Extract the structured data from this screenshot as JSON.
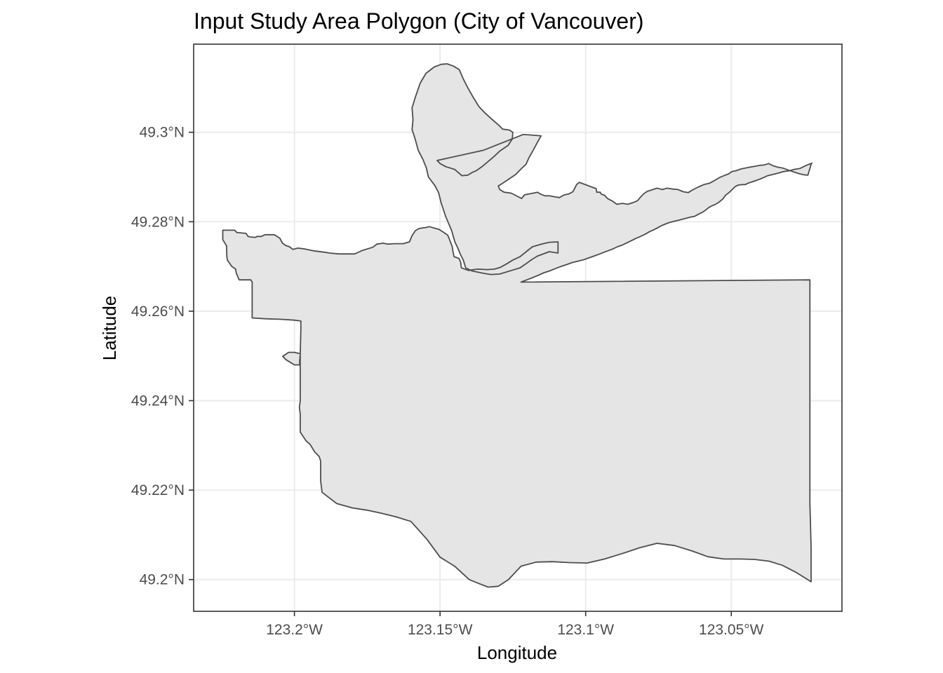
{
  "chart_data": {
    "type": "map",
    "title": "Input Study Area Polygon (City of Vancouver)",
    "xlabel": "Longitude",
    "ylabel": "Latitude",
    "x_ticks": [
      {
        "value": -123.2,
        "label": "123.2°W"
      },
      {
        "value": -123.15,
        "label": "123.15°W"
      },
      {
        "value": -123.1,
        "label": "123.1°W"
      },
      {
        "value": -123.05,
        "label": "123.05°W"
      }
    ],
    "y_ticks": [
      {
        "value": 49.2,
        "label": "49.2°N"
      },
      {
        "value": 49.22,
        "label": "49.22°N"
      },
      {
        "value": 49.24,
        "label": "49.24°N"
      },
      {
        "value": 49.26,
        "label": "49.26°N"
      },
      {
        "value": 49.28,
        "label": "49.28°N"
      },
      {
        "value": 49.3,
        "label": "49.3°N"
      }
    ],
    "xlim": [
      -123.2346,
      -123.012
    ],
    "ylim": [
      49.1929,
      49.3197
    ],
    "grid": true,
    "fill_color": "#e5e5e5",
    "stroke_color": "#4d4d4d",
    "polygon": [
      [
        -123.2246,
        49.2781
      ],
      [
        -123.2205,
        49.2781
      ],
      [
        -123.2198,
        49.2776
      ],
      [
        -123.2166,
        49.2774
      ],
      [
        -123.2159,
        49.2767
      ],
      [
        -123.2152,
        49.2766
      ],
      [
        -123.2134,
        49.2765
      ],
      [
        -123.2129,
        49.2767
      ],
      [
        -123.2114,
        49.2767
      ],
      [
        -123.2101,
        49.2771
      ],
      [
        -123.2069,
        49.2771
      ],
      [
        -123.205,
        49.2763
      ],
      [
        -123.2041,
        49.2752
      ],
      [
        -123.203,
        49.2747
      ],
      [
        -123.2017,
        49.2744
      ],
      [
        -123.2005,
        49.2738
      ],
      [
        -123.1988,
        49.2741
      ],
      [
        -123.1964,
        49.2739
      ],
      [
        -123.1934,
        49.2735
      ],
      [
        -123.1898,
        49.2732
      ],
      [
        -123.1878,
        49.273
      ],
      [
        -123.1848,
        49.2728
      ],
      [
        -123.1793,
        49.2728
      ],
      [
        -123.1766,
        49.2736
      ],
      [
        -123.1731,
        49.2743
      ],
      [
        -123.1717,
        49.275
      ],
      [
        -123.1695,
        49.2752
      ],
      [
        -123.168,
        49.275
      ],
      [
        -123.1658,
        49.2751
      ],
      [
        -123.1627,
        49.2751
      ],
      [
        -123.1605,
        49.2755
      ],
      [
        -123.1596,
        49.2769
      ],
      [
        -123.1585,
        49.278
      ],
      [
        -123.1572,
        49.2785
      ],
      [
        -123.155,
        49.2787
      ],
      [
        -123.1536,
        49.2789
      ],
      [
        -123.1521,
        49.2786
      ],
      [
        -123.1504,
        49.2783
      ],
      [
        -123.1489,
        49.2777
      ],
      [
        -123.1474,
        49.277
      ],
      [
        -123.1469,
        49.2763
      ],
      [
        -123.1458,
        49.2744
      ],
      [
        -123.1456,
        49.2735
      ],
      [
        -123.1452,
        49.2722
      ],
      [
        -123.1435,
        49.2718
      ],
      [
        -123.1429,
        49.2709
      ],
      [
        -123.1427,
        49.2697
      ],
      [
        -123.1402,
        49.2691
      ],
      [
        -123.1386,
        49.2693
      ],
      [
        -123.1368,
        49.2694
      ],
      [
        -123.1339,
        49.2693
      ],
      [
        -123.1313,
        49.2694
      ],
      [
        -123.1293,
        49.2698
      ],
      [
        -123.1271,
        49.2706
      ],
      [
        -123.1251,
        49.2714
      ],
      [
        -123.1225,
        49.2722
      ],
      [
        -123.1204,
        49.2733
      ],
      [
        -123.1183,
        49.2744
      ],
      [
        -123.1152,
        49.275
      ],
      [
        -123.1125,
        49.2754
      ],
      [
        -123.1095,
        49.2755
      ],
      [
        -123.1095,
        49.273
      ],
      [
        -123.1125,
        49.2733
      ],
      [
        -123.1166,
        49.2723
      ],
      [
        -123.1186,
        49.2715
      ],
      [
        -123.1205,
        49.2706
      ],
      [
        -123.1225,
        49.2697
      ],
      [
        -123.1255,
        49.2691
      ],
      [
        -123.1295,
        49.2683
      ],
      [
        -123.1325,
        49.2682
      ],
      [
        -123.1352,
        49.2685
      ],
      [
        -123.139,
        49.269
      ],
      [
        -123.1412,
        49.2697
      ],
      [
        -123.142,
        49.2714
      ],
      [
        -123.143,
        49.2727
      ],
      [
        -123.1439,
        49.2741
      ],
      [
        -123.1449,
        49.2755
      ],
      [
        -123.146,
        49.278
      ],
      [
        -123.1481,
        49.2812
      ],
      [
        -123.1496,
        49.2842
      ],
      [
        -123.1505,
        49.2865
      ],
      [
        -123.1518,
        49.2881
      ],
      [
        -123.154,
        49.29
      ],
      [
        -123.1547,
        49.292
      ],
      [
        -123.1558,
        49.2938
      ],
      [
        -123.1575,
        49.296
      ],
      [
        -123.1586,
        49.2986
      ],
      [
        -123.1596,
        49.3006
      ],
      [
        -123.1593,
        49.3028
      ],
      [
        -123.1596,
        49.3055
      ],
      [
        -123.1584,
        49.308
      ],
      [
        -123.1568,
        49.311
      ],
      [
        -123.1548,
        49.3132
      ],
      [
        -123.152,
        49.3146
      ],
      [
        -123.1495,
        49.3152
      ],
      [
        -123.1475,
        49.3153
      ],
      [
        -123.1454,
        49.3148
      ],
      [
        -123.1434,
        49.314
      ],
      [
        -123.142,
        49.3119
      ],
      [
        -123.1405,
        49.31
      ],
      [
        -123.1388,
        49.308
      ],
      [
        -123.1366,
        49.3057
      ],
      [
        -123.1347,
        49.3044
      ],
      [
        -123.1325,
        49.3031
      ],
      [
        -123.1297,
        49.3015
      ],
      [
        -123.1285,
        49.3007
      ],
      [
        -123.1262,
        49.3005
      ],
      [
        -123.125,
        49.3
      ],
      [
        -123.1252,
        49.2985
      ],
      [
        -123.1266,
        49.2971
      ],
      [
        -123.1295,
        49.2958
      ],
      [
        -123.1316,
        49.2945
      ],
      [
        -123.1336,
        49.2934
      ],
      [
        -123.1356,
        49.2923
      ],
      [
        -123.1376,
        49.2914
      ],
      [
        -123.139,
        49.291
      ],
      [
        -123.1405,
        49.2904
      ],
      [
        -123.1425,
        49.2903
      ],
      [
        -123.145,
        49.2917
      ],
      [
        -123.1465,
        49.292
      ],
      [
        -123.148,
        49.2923
      ],
      [
        -123.15,
        49.293
      ],
      [
        -123.151,
        49.2937
      ],
      [
        -123.135,
        49.296
      ],
      [
        -123.1215,
        49.2995
      ],
      [
        -123.119,
        49.2994
      ],
      [
        -123.1153,
        49.2992
      ],
      [
        -123.1167,
        49.2976
      ],
      [
        -123.118,
        49.296
      ],
      [
        -123.1195,
        49.2943
      ],
      [
        -123.1205,
        49.2928
      ],
      [
        -123.1222,
        49.2918
      ],
      [
        -123.124,
        49.2906
      ],
      [
        -123.1262,
        49.2896
      ],
      [
        -123.1285,
        49.2886
      ],
      [
        -123.13,
        49.288
      ],
      [
        -123.1295,
        49.2872
      ],
      [
        -123.128,
        49.2866
      ],
      [
        -123.1256,
        49.2864
      ],
      [
        -123.122,
        49.2852
      ],
      [
        -123.121,
        49.286
      ],
      [
        -123.1196,
        49.2862
      ],
      [
        -123.118,
        49.2864
      ],
      [
        -123.1165,
        49.2866
      ],
      [
        -123.1156,
        49.2862
      ],
      [
        -123.114,
        49.2858
      ],
      [
        -123.1124,
        49.2858
      ],
      [
        -123.1108,
        49.2856
      ],
      [
        -123.109,
        49.2854
      ],
      [
        -123.1074,
        49.286
      ],
      [
        -123.1058,
        49.2862
      ],
      [
        -123.1044,
        49.2867
      ],
      [
        -123.1031,
        49.2883
      ],
      [
        -123.1022,
        49.2888
      ],
      [
        -123.0964,
        49.2874
      ],
      [
        -123.0962,
        49.2866
      ],
      [
        -123.095,
        49.2866
      ],
      [
        -123.0947,
        49.2862
      ],
      [
        -123.0935,
        49.2859
      ],
      [
        -123.0925,
        49.2852
      ],
      [
        -123.0908,
        49.2846
      ],
      [
        -123.0893,
        49.2839
      ],
      [
        -123.0873,
        49.2841
      ],
      [
        -123.0855,
        49.2839
      ],
      [
        -123.0837,
        49.2843
      ],
      [
        -123.0822,
        49.2847
      ],
      [
        -123.0812,
        49.2855
      ],
      [
        -123.08,
        49.2863
      ],
      [
        -123.0788,
        49.2868
      ],
      [
        -123.0774,
        49.2871
      ],
      [
        -123.0755,
        49.2875
      ],
      [
        -123.0737,
        49.2872
      ],
      [
        -123.072,
        49.2875
      ],
      [
        -123.0701,
        49.2873
      ],
      [
        -123.0683,
        49.2872
      ],
      [
        -123.0665,
        49.2867
      ],
      [
        -123.0648,
        49.2865
      ],
      [
        -123.0631,
        49.2872
      ],
      [
        -123.0612,
        49.2878
      ],
      [
        -123.0594,
        49.2883
      ],
      [
        -123.0575,
        49.2886
      ],
      [
        -123.0558,
        49.2892
      ],
      [
        -123.054,
        49.2899
      ],
      [
        -123.0525,
        49.2903
      ],
      [
        -123.0509,
        49.2907
      ],
      [
        -123.0498,
        49.2912
      ],
      [
        -123.0485,
        49.2914
      ],
      [
        -123.0467,
        49.2918
      ],
      [
        -123.0452,
        49.292
      ],
      [
        -123.0437,
        49.2922
      ],
      [
        -123.042,
        49.2924
      ],
      [
        -123.0402,
        49.2926
      ],
      [
        -123.0387,
        49.2927
      ],
      [
        -123.0372,
        49.293
      ],
      [
        -123.0356,
        49.2925
      ],
      [
        -123.034,
        49.2922
      ],
      [
        -123.0323,
        49.292
      ],
      [
        -123.0306,
        49.2916
      ],
      [
        -123.0293,
        49.2913
      ],
      [
        -123.0279,
        49.291
      ],
      [
        -123.0265,
        49.2907
      ],
      [
        -123.0251,
        49.2905
      ],
      [
        -123.0237,
        49.2904
      ],
      [
        -123.0225,
        49.293
      ],
      [
        -123.0223,
        49.2931
      ],
      [
        -123.0235,
        49.2928
      ],
      [
        -123.0249,
        49.2924
      ],
      [
        -123.0265,
        49.2919
      ],
      [
        -123.0284,
        49.2917
      ],
      [
        -123.0302,
        49.2914
      ],
      [
        -123.0321,
        49.2912
      ],
      [
        -123.0337,
        49.2909
      ],
      [
        -123.0356,
        49.2906
      ],
      [
        -123.0375,
        49.2903
      ],
      [
        -123.0388,
        49.2899
      ],
      [
        -123.0403,
        49.2895
      ],
      [
        -123.0416,
        49.2892
      ],
      [
        -123.0429,
        49.2889
      ],
      [
        -123.0443,
        49.2886
      ],
      [
        -123.0452,
        49.2883
      ],
      [
        -123.0463,
        49.2883
      ],
      [
        -123.0476,
        49.2882
      ],
      [
        -123.0486,
        49.2879
      ],
      [
        -123.0497,
        49.2872
      ],
      [
        -123.0508,
        49.2865
      ],
      [
        -123.052,
        49.2859
      ],
      [
        -123.0529,
        49.2851
      ],
      [
        -123.0538,
        49.2846
      ],
      [
        -123.0546,
        49.2842
      ],
      [
        -123.0554,
        49.2839
      ],
      [
        -123.0565,
        49.2836
      ],
      [
        -123.0577,
        49.2832
      ],
      [
        -123.0588,
        49.2826
      ],
      [
        -123.0597,
        49.2822
      ],
      [
        -123.0612,
        49.2817
      ],
      [
        -123.0626,
        49.2812
      ],
      [
        -123.0642,
        49.281
      ],
      [
        -123.0654,
        49.2808
      ],
      [
        -123.0666,
        49.2806
      ],
      [
        -123.0677,
        49.2804
      ],
      [
        -123.069,
        49.2802
      ],
      [
        -123.0702,
        49.28
      ],
      [
        -123.0714,
        49.2798
      ],
      [
        -123.0726,
        49.2795
      ],
      [
        -123.074,
        49.2791
      ],
      [
        -123.0754,
        49.2786
      ],
      [
        -123.0766,
        49.2782
      ],
      [
        -123.078,
        49.2778
      ],
      [
        -123.0796,
        49.2772
      ],
      [
        -123.0812,
        49.2767
      ],
      [
        -123.0827,
        49.2763
      ],
      [
        -123.0842,
        49.2758
      ],
      [
        -123.0858,
        49.2753
      ],
      [
        -123.0874,
        49.2748
      ],
      [
        -123.0891,
        49.2744
      ],
      [
        -123.0907,
        49.2739
      ],
      [
        -123.0924,
        49.2735
      ],
      [
        -123.094,
        49.2731
      ],
      [
        -123.0956,
        49.2727
      ],
      [
        -123.0972,
        49.2723
      ],
      [
        -123.099,
        49.2719
      ],
      [
        -123.1007,
        49.2715
      ],
      [
        -123.1025,
        49.2712
      ],
      [
        -123.1045,
        49.2709
      ],
      [
        -123.1066,
        49.2704
      ],
      [
        -123.1085,
        49.27
      ],
      [
        -123.1105,
        49.2695
      ],
      [
        -123.1124,
        49.269
      ],
      [
        -123.1143,
        49.2686
      ],
      [
        -123.1164,
        49.268
      ],
      [
        -123.1182,
        49.2675
      ],
      [
        -123.1202,
        49.267
      ],
      [
        -123.1222,
        49.2665
      ],
      [
        -123.023,
        49.267
      ],
      [
        -123.023,
        49.262
      ],
      [
        -123.023,
        49.257
      ],
      [
        -123.023,
        49.252
      ],
      [
        -123.023,
        49.247
      ],
      [
        -123.023,
        49.242
      ],
      [
        -123.023,
        49.237
      ],
      [
        -123.023,
        49.232
      ],
      [
        -123.023,
        49.227
      ],
      [
        -123.023,
        49.222
      ],
      [
        -123.023,
        49.217
      ],
      [
        -123.0228,
        49.212
      ],
      [
        -123.0226,
        49.207
      ],
      [
        -123.0226,
        49.202
      ],
      [
        -123.0226,
        49.1995
      ],
      [
        -123.024,
        49.2001
      ],
      [
        -123.028,
        49.2017
      ],
      [
        -123.0325,
        49.2032
      ],
      [
        -123.037,
        49.2041
      ],
      [
        -123.042,
        49.2045
      ],
      [
        -123.047,
        49.2046
      ],
      [
        -123.0525,
        49.2046
      ],
      [
        -123.058,
        49.2051
      ],
      [
        -123.0635,
        49.2064
      ],
      [
        -123.0695,
        49.2076
      ],
      [
        -123.0755,
        49.2081
      ],
      [
        -123.0815,
        49.2071
      ],
      [
        -123.0875,
        49.2058
      ],
      [
        -123.0935,
        49.2046
      ],
      [
        -123.0995,
        49.2037
      ],
      [
        -123.1055,
        49.2038
      ],
      [
        -123.1115,
        49.204
      ],
      [
        -123.117,
        49.2039
      ],
      [
        -123.1222,
        49.203
      ],
      [
        -123.1265,
        49.2
      ],
      [
        -123.13,
        49.1985
      ],
      [
        -123.1335,
        49.1983
      ],
      [
        -123.137,
        49.1992
      ],
      [
        -123.14,
        49.2
      ],
      [
        -123.145,
        49.203
      ],
      [
        -123.15,
        49.205
      ],
      [
        -123.1545,
        49.209
      ],
      [
        -123.16,
        49.213
      ],
      [
        -123.165,
        49.214
      ],
      [
        -123.17,
        49.2148
      ],
      [
        -123.175,
        49.2155
      ],
      [
        -123.18,
        49.216
      ],
      [
        -123.1855,
        49.217
      ],
      [
        -123.1905,
        49.2195
      ],
      [
        -123.191,
        49.222
      ],
      [
        -123.191,
        49.2265
      ],
      [
        -123.1915,
        49.2275
      ],
      [
        -123.193,
        49.2285
      ],
      [
        -123.1947,
        49.2303
      ],
      [
        -123.196,
        49.231
      ],
      [
        -123.198,
        49.233
      ],
      [
        -123.198,
        49.237
      ],
      [
        -123.1983,
        49.2385
      ],
      [
        -123.198,
        49.24
      ],
      [
        -123.198,
        49.245
      ],
      [
        -123.198,
        49.246
      ],
      [
        -123.198,
        49.247
      ],
      [
        -123.198,
        49.2505
      ],
      [
        -123.2,
        49.2508
      ],
      [
        -123.202,
        49.2508
      ],
      [
        -123.204,
        49.2499
      ],
      [
        -123.203,
        49.2492
      ],
      [
        -123.2,
        49.248
      ],
      [
        -123.1982,
        49.248
      ],
      [
        -123.1982,
        49.249
      ],
      [
        -123.198,
        49.2503
      ],
      [
        -123.1978,
        49.256
      ],
      [
        -123.1978,
        49.2578
      ],
      [
        -123.2,
        49.258
      ],
      [
        -123.205,
        49.2582
      ],
      [
        -123.21,
        49.2583
      ],
      [
        -123.2145,
        49.2585
      ],
      [
        -123.2145,
        49.262
      ],
      [
        -123.2145,
        49.2665
      ],
      [
        -123.215,
        49.267
      ],
      [
        -123.217,
        49.267
      ],
      [
        -123.219,
        49.267
      ],
      [
        -123.22,
        49.2686
      ],
      [
        -123.2202,
        49.2694
      ],
      [
        -123.2215,
        49.27
      ],
      [
        -123.223,
        49.2714
      ],
      [
        -123.2232,
        49.2722
      ],
      [
        -123.2233,
        49.2746
      ],
      [
        -123.2246,
        49.276
      ],
      [
        -123.2246,
        49.2781
      ]
    ]
  }
}
